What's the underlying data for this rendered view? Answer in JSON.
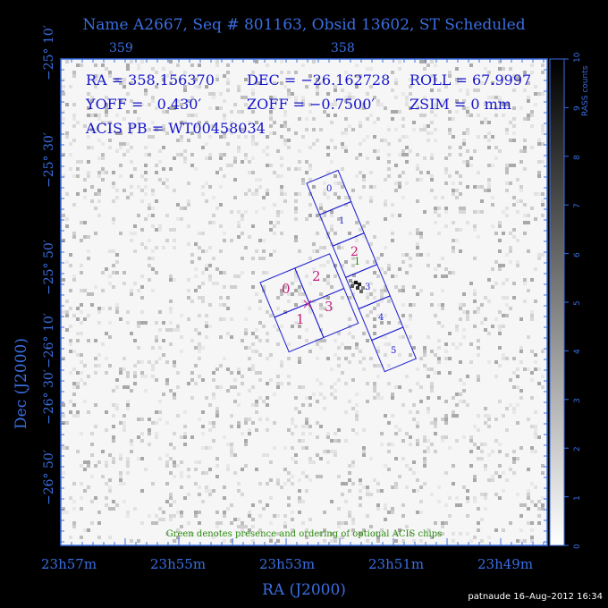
{
  "title": "Name A2667, Seq # 801163, Obsid 13602, ST Scheduled",
  "top_ra_ticks": [
    "359",
    "358"
  ],
  "bottom_ra_ticks": [
    "23h57m",
    "23h55m",
    "23h53m",
    "23h51m",
    "23h49m"
  ],
  "dec_ticks": [
    "−25° 10′",
    "−25° 30′",
    "−25° 50′",
    "−26° 10′",
    "−26° 30′",
    "−26° 50′"
  ],
  "xlabel": "RA (J2000)",
  "ylabel": "Dec (J2000)",
  "info": {
    "ra": "RA = 358.156370",
    "dec": "DEC = −26.162728",
    "roll": "ROLL = 67.9997",
    "yoff": "YOFF =   0.430′",
    "zoff": "ZOFF = −0.7500′",
    "zsim": "ZSIM = 0 mm",
    "acis_pb": "ACIS PB = WT00458034"
  },
  "note": "Green denotes presence and ordering of optional ACIS chips",
  "colorbar": {
    "label": "RASS counts",
    "ticks": [
      "0",
      "1",
      "2",
      "3",
      "4",
      "5",
      "6",
      "7",
      "8",
      "9",
      "10"
    ]
  },
  "acis_i_chips": [
    "0",
    "1",
    "2",
    "3"
  ],
  "acis_s_chips": [
    "0",
    "1",
    "2",
    "3",
    "4",
    "5"
  ],
  "optional_chip_order": [
    "2",
    "1"
  ],
  "stamp": "patnaude 16–Aug–2012 16:34",
  "colors": {
    "axis": "#3a6ee0",
    "chip_outline": "#1a1ad0",
    "acis_i_label": "#c0207a",
    "optional": "#2a8a10",
    "info": "#1515c8"
  }
}
